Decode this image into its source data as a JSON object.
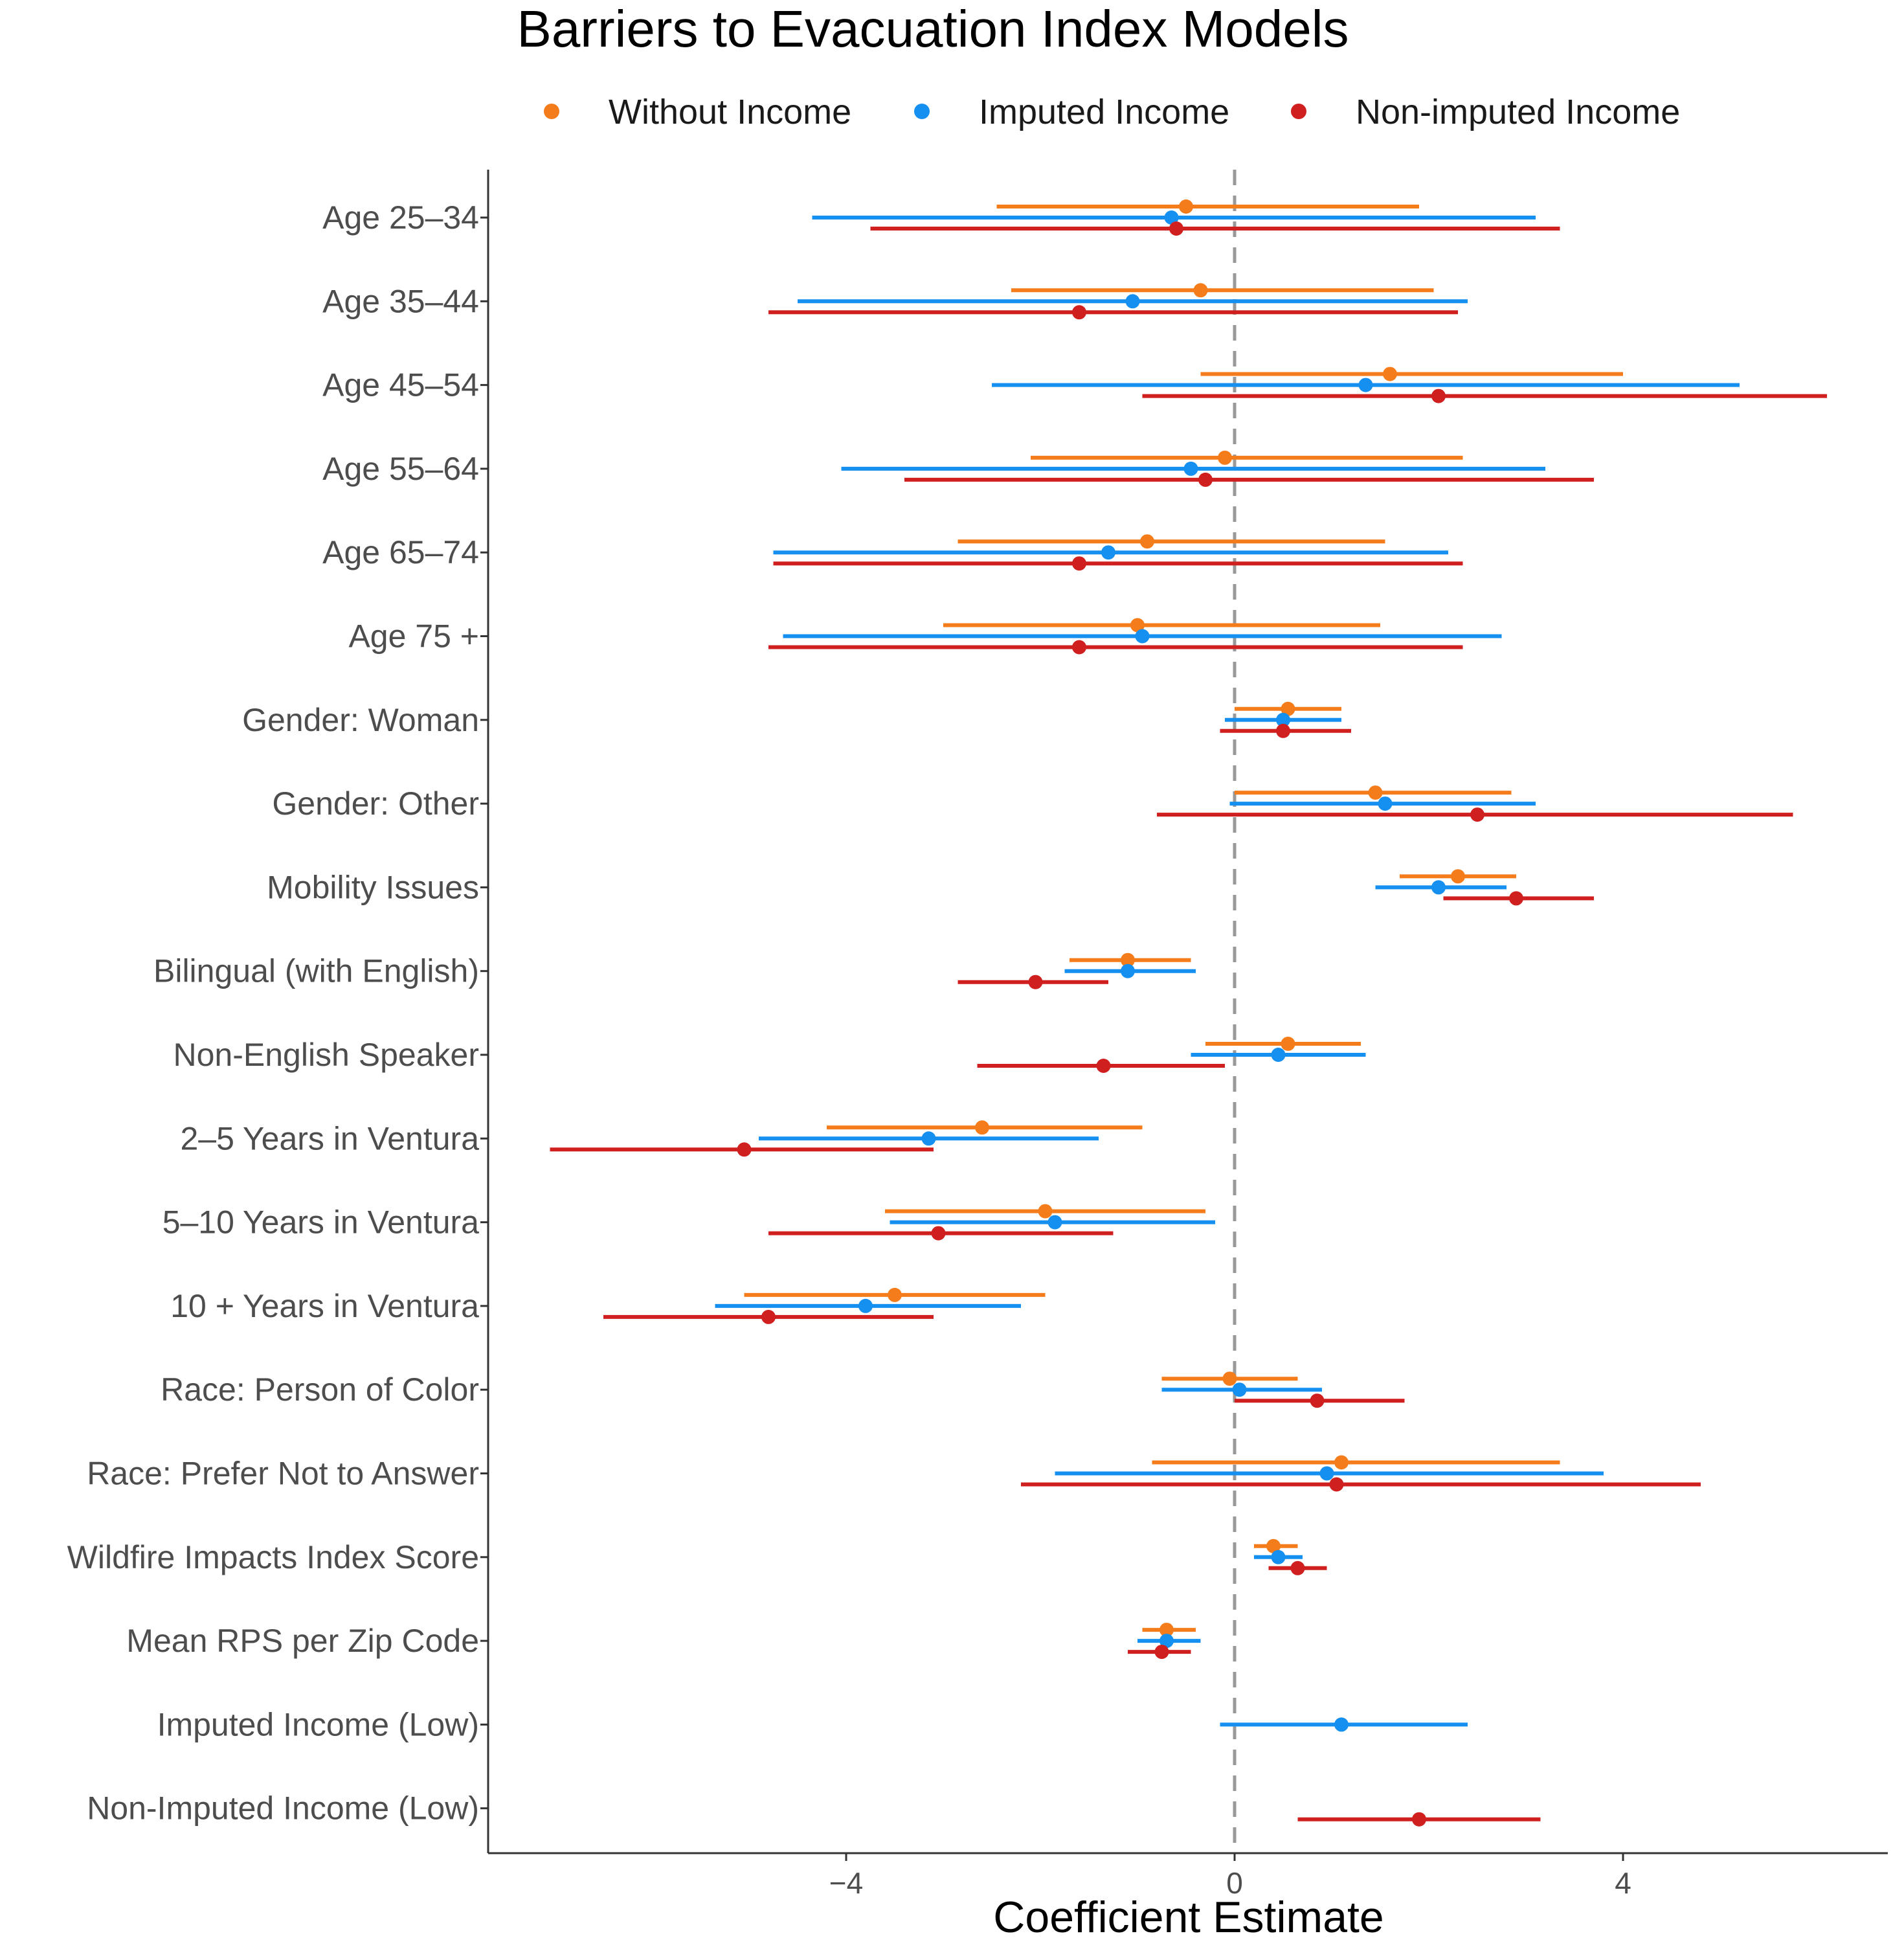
{
  "chart_data": {
    "type": "forest",
    "title": "Barriers to Evacuation Index Models",
    "xlabel": "Coefficient Estimate",
    "ylabel": "",
    "xlim": [
      -7.7,
      6.8
    ],
    "xticks": [
      -4,
      0,
      4
    ],
    "xtick_labels": [
      "−4",
      "0",
      "4"
    ],
    "reference_line": 0,
    "legend_position": "top",
    "colors": {
      "Without Income": "#F57C1A",
      "Imputed Income": "#1590F0",
      "Non-imputed Income": "#D01F1F",
      "reference": "#999999",
      "axis": "#333333"
    },
    "series": [
      {
        "name": "Without Income",
        "key": "without"
      },
      {
        "name": "Imputed Income",
        "key": "imputed"
      },
      {
        "name": "Non-imputed Income",
        "key": "nonimputed"
      }
    ],
    "categories": [
      {
        "label": "Age 25–34",
        "without": [
          -0.5,
          -2.45,
          1.9
        ],
        "imputed": [
          -0.65,
          -4.35,
          3.1
        ],
        "nonimputed": [
          -0.6,
          -3.75,
          3.35
        ]
      },
      {
        "label": "Age 35–44",
        "without": [
          -0.35,
          -2.3,
          2.05
        ],
        "imputed": [
          -1.05,
          -4.5,
          2.4
        ],
        "nonimputed": [
          -1.6,
          -4.8,
          2.3
        ]
      },
      {
        "label": "Age 45–54",
        "without": [
          1.6,
          -0.35,
          4.0
        ],
        "imputed": [
          1.35,
          -2.5,
          5.2
        ],
        "nonimputed": [
          2.1,
          -0.95,
          6.1
        ]
      },
      {
        "label": "Age 55–64",
        "without": [
          -0.1,
          -2.1,
          2.35
        ],
        "imputed": [
          -0.45,
          -4.05,
          3.2
        ],
        "nonimputed": [
          -0.3,
          -3.4,
          3.7
        ]
      },
      {
        "label": "Age 65–74",
        "without": [
          -0.9,
          -2.85,
          1.55
        ],
        "imputed": [
          -1.3,
          -4.75,
          2.2
        ],
        "nonimputed": [
          -1.6,
          -4.75,
          2.35
        ]
      },
      {
        "label": "Age 75 +",
        "without": [
          -1.0,
          -3.0,
          1.5
        ],
        "imputed": [
          -0.95,
          -4.65,
          2.75
        ],
        "nonimputed": [
          -1.6,
          -4.8,
          2.35
        ]
      },
      {
        "label": "Gender: Woman",
        "without": [
          0.55,
          0.0,
          1.1
        ],
        "imputed": [
          0.5,
          -0.1,
          1.1
        ],
        "nonimputed": [
          0.5,
          -0.15,
          1.2
        ]
      },
      {
        "label": "Gender: Other",
        "without": [
          1.45,
          0.0,
          2.85
        ],
        "imputed": [
          1.55,
          -0.05,
          3.1
        ],
        "nonimputed": [
          2.5,
          -0.8,
          5.75
        ]
      },
      {
        "label": "Mobility Issues",
        "without": [
          2.3,
          1.7,
          2.9
        ],
        "imputed": [
          2.1,
          1.45,
          2.8
        ],
        "nonimputed": [
          2.9,
          2.15,
          3.7
        ]
      },
      {
        "label": "Bilingual (with English)",
        "without": [
          -1.1,
          -1.7,
          -0.45
        ],
        "imputed": [
          -1.1,
          -1.75,
          -0.4
        ],
        "nonimputed": [
          -2.05,
          -2.85,
          -1.3
        ]
      },
      {
        "label": "Non-English Speaker",
        "without": [
          0.55,
          -0.3,
          1.3
        ],
        "imputed": [
          0.45,
          -0.45,
          1.35
        ],
        "nonimputed": [
          -1.35,
          -2.65,
          -0.1
        ]
      },
      {
        "label": "2–5 Years in Ventura",
        "without": [
          -2.6,
          -4.2,
          -0.95
        ],
        "imputed": [
          -3.15,
          -4.9,
          -1.4
        ],
        "nonimputed": [
          -5.05,
          -7.05,
          -3.1
        ]
      },
      {
        "label": "5–10 Years in Ventura",
        "without": [
          -1.95,
          -3.6,
          -0.3
        ],
        "imputed": [
          -1.85,
          -3.55,
          -0.2
        ],
        "nonimputed": [
          -3.05,
          -4.8,
          -1.25
        ]
      },
      {
        "label": "10 + Years in Ventura",
        "without": [
          -3.5,
          -5.05,
          -1.95
        ],
        "imputed": [
          -3.8,
          -5.35,
          -2.2
        ],
        "nonimputed": [
          -4.8,
          -6.5,
          -3.1
        ]
      },
      {
        "label": "Race: Person of Color",
        "without": [
          -0.05,
          -0.75,
          0.65
        ],
        "imputed": [
          0.05,
          -0.75,
          0.9
        ],
        "nonimputed": [
          0.85,
          0.0,
          1.75
        ]
      },
      {
        "label": "Race: Prefer Not to Answer",
        "without": [
          1.1,
          -0.85,
          3.35
        ],
        "imputed": [
          0.95,
          -1.85,
          3.8
        ],
        "nonimputed": [
          1.05,
          -2.2,
          4.8
        ]
      },
      {
        "label": "Wildfire Impacts Index Score",
        "without": [
          0.4,
          0.2,
          0.65
        ],
        "imputed": [
          0.45,
          0.2,
          0.7
        ],
        "nonimputed": [
          0.65,
          0.35,
          0.95
        ]
      },
      {
        "label": "Mean RPS per Zip Code",
        "without": [
          -0.7,
          -0.95,
          -0.4
        ],
        "imputed": [
          -0.7,
          -1.0,
          -0.35
        ],
        "nonimputed": [
          -0.75,
          -1.1,
          -0.45
        ]
      },
      {
        "label": "Imputed Income (Low)",
        "imputed": [
          1.1,
          -0.15,
          2.4
        ]
      },
      {
        "label": "Non-Imputed Income (Low)",
        "nonimputed": [
          1.9,
          0.65,
          3.15
        ]
      }
    ]
  }
}
